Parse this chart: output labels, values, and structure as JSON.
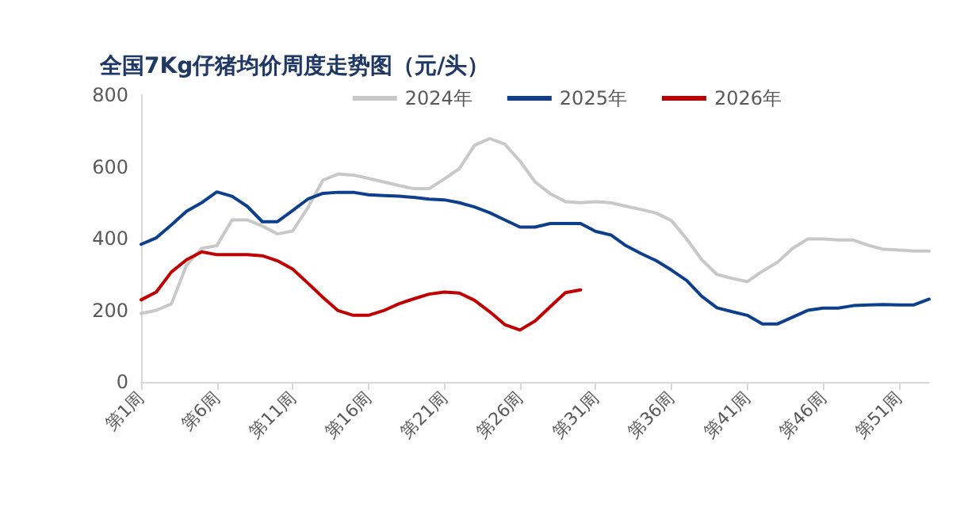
{
  "chart_data": {
    "type": "line",
    "title": "全国7Kg仔猪均价周度走势图（元/头）",
    "categories": [
      "第1周",
      null,
      null,
      null,
      null,
      "第6周",
      null,
      null,
      null,
      null,
      "第11周",
      null,
      null,
      null,
      null,
      "第16周",
      null,
      null,
      null,
      null,
      "第21周",
      null,
      null,
      null,
      null,
      "第26周",
      null,
      null,
      null,
      null,
      "第31周",
      null,
      null,
      null,
      null,
      "第36周",
      null,
      null,
      null,
      null,
      "第41周",
      null,
      null,
      null,
      null,
      "第46周",
      null,
      null,
      null,
      null,
      "第51周",
      null,
      null
    ],
    "series": [
      {
        "name": "2024年",
        "color": "#c8c8c8",
        "values": [
          191,
          200,
          218,
          326,
          373,
          380,
          452,
          452,
          435,
          413,
          421,
          486,
          563,
          580,
          577,
          568,
          558,
          548,
          539,
          539,
          566,
          595,
          660,
          679,
          663,
          616,
          558,
          525,
          503,
          500,
          503,
          500,
          490,
          481,
          471,
          450,
          399,
          341,
          300,
          289,
          280,
          309,
          334,
          373,
          399,
          399,
          396,
          396,
          381,
          370,
          368,
          365,
          365
        ]
      },
      {
        "name": "2025年",
        "color": "#0e3f8c",
        "values": [
          384,
          402,
          438,
          476,
          500,
          530,
          518,
          490,
          447,
          447,
          478,
          510,
          526,
          529,
          529,
          522,
          520,
          518,
          515,
          510,
          508,
          500,
          488,
          472,
          452,
          432,
          432,
          442,
          442,
          442,
          420,
          410,
          380,
          358,
          338,
          312,
          283,
          239,
          207,
          196,
          186,
          162,
          162,
          181,
          200,
          206,
          206,
          213,
          215,
          216,
          215,
          215,
          231
        ]
      },
      {
        "name": "2026年",
        "color": "#c00000",
        "values": [
          229,
          251,
          307,
          341,
          363,
          355,
          355,
          355,
          352,
          338,
          315,
          276,
          236,
          199,
          186,
          186,
          199,
          218,
          232,
          245,
          251,
          248,
          228,
          196,
          160,
          145,
          170,
          210,
          249,
          257,
          null,
          null,
          null,
          null,
          null,
          null,
          null,
          null,
          null,
          null,
          null,
          null,
          null,
          null,
          null,
          null,
          null,
          null,
          null,
          null,
          null,
          null,
          null
        ]
      }
    ],
    "ylim": [
      0,
      800
    ],
    "yticks": [
      0,
      200,
      400,
      600,
      800
    ],
    "grid": false,
    "legend": "top",
    "marker": "none",
    "line_style": "solid"
  }
}
